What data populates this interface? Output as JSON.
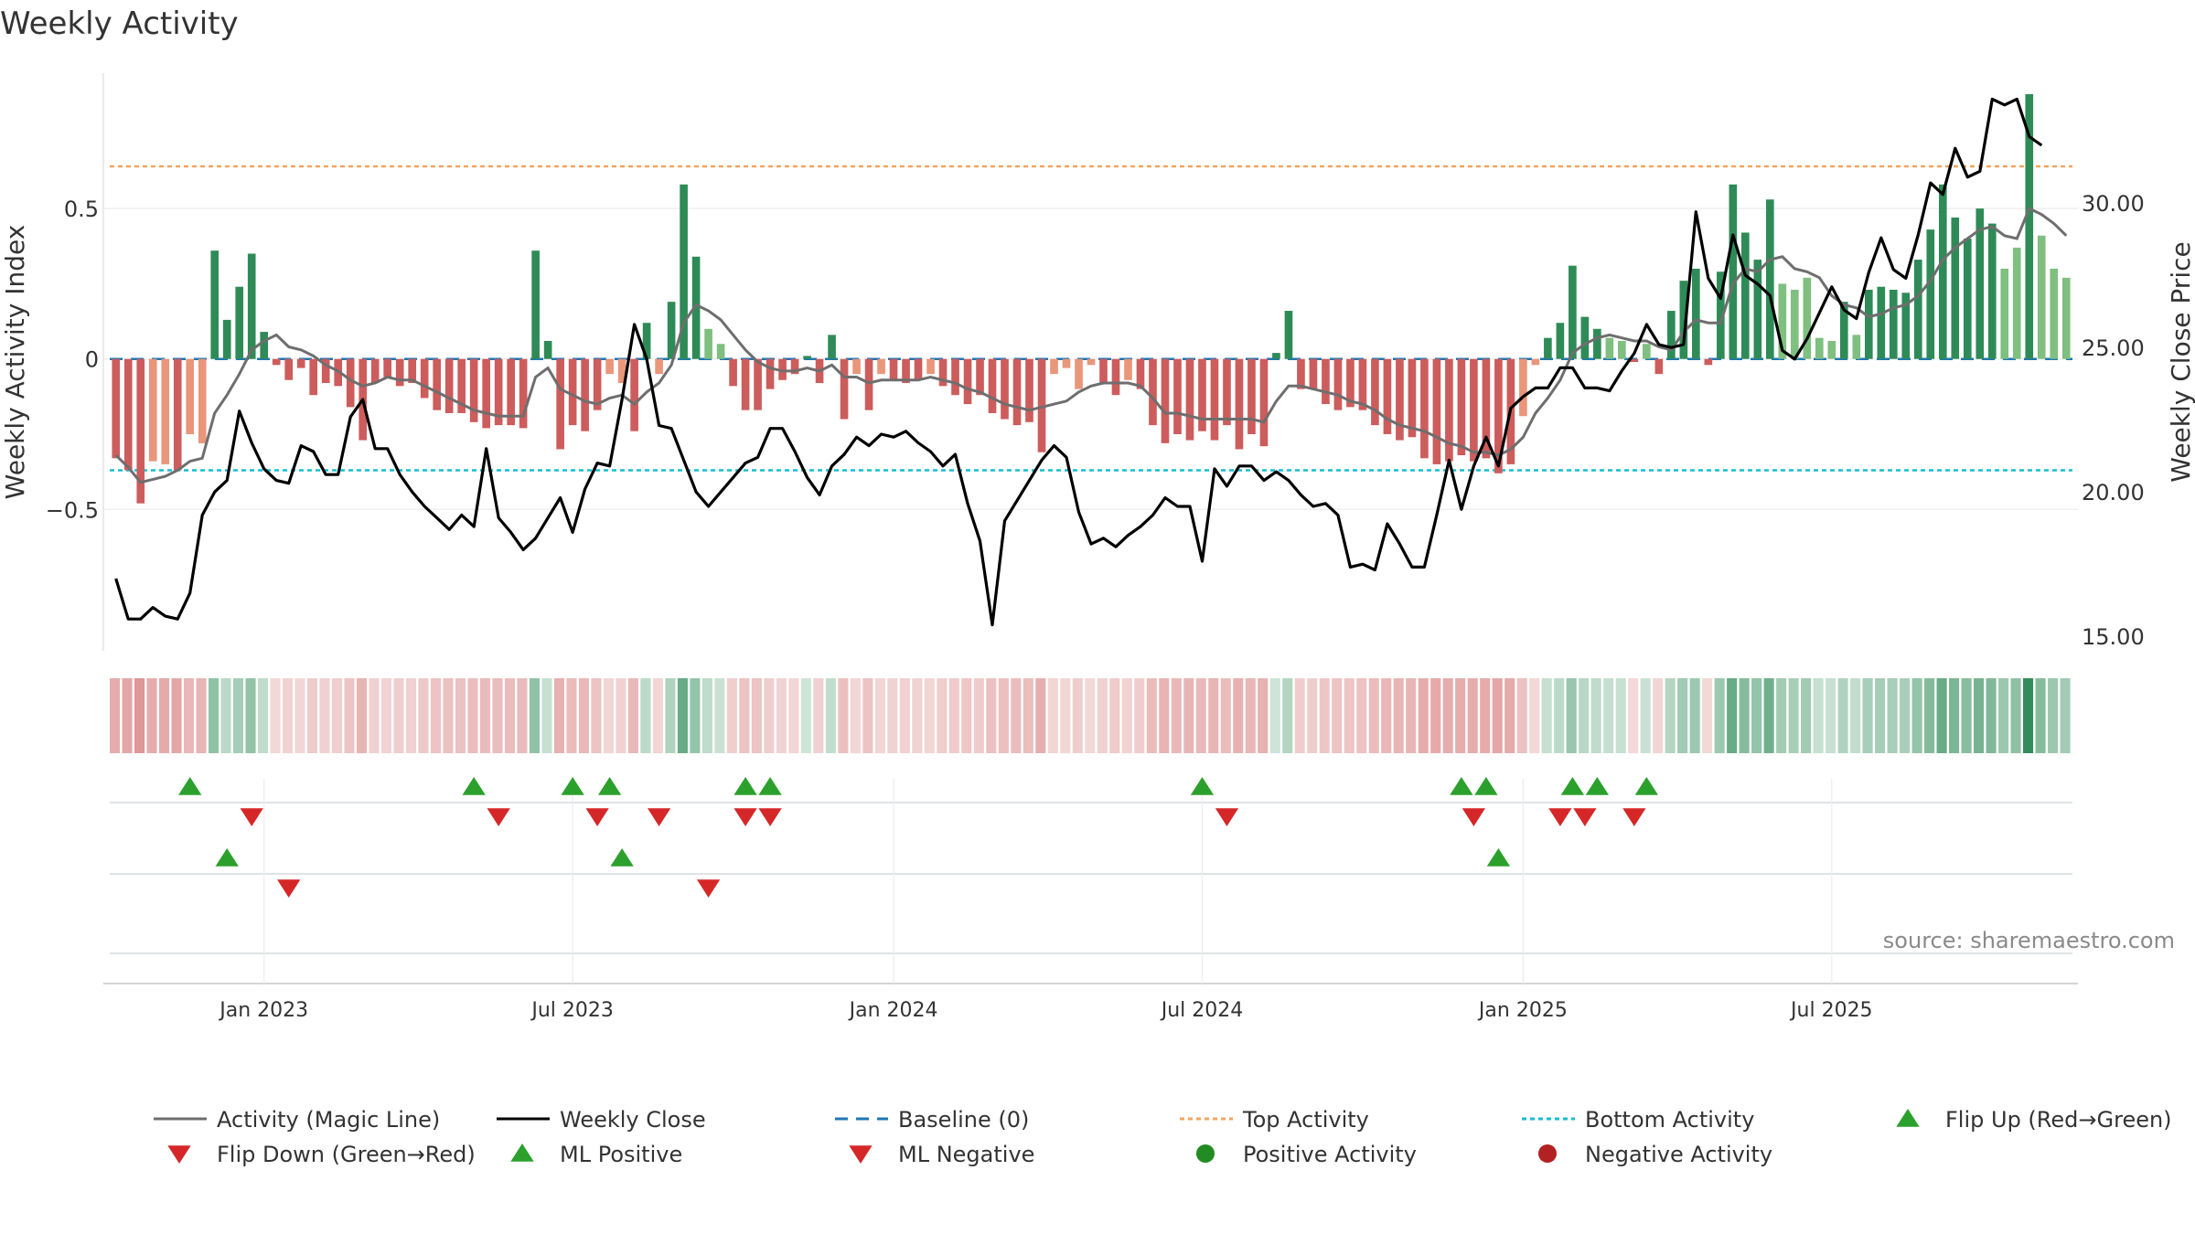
{
  "title": "Weekly Activity",
  "source": "source: sharemaestro.com",
  "colors": {
    "up_dark": "#2e8b57",
    "up_light": "#7fbf7f",
    "down_dark": "#cd5c5c",
    "down_light": "#e9967a",
    "magic_line": "#6e6e6e",
    "close_line": "#000000",
    "baseline": "#1f77b4",
    "top": "#f4a460",
    "bottom": "#17becf",
    "flip_up": "#2ca02c",
    "flip_down": "#d62728",
    "pos_activity": "#228b22",
    "neg_activity": "#b22222"
  },
  "chart_data": {
    "type": "bar",
    "title": "Weekly Activity",
    "ylabel": "Weekly Activity Index",
    "y2label": "Weekly Close Price",
    "ylim": [
      -0.97,
      0.95
    ],
    "y2lim": [
      14.5,
      34.5
    ],
    "yticks": [
      -0.5,
      0,
      0.5
    ],
    "ytick_labels": [
      "−0.5",
      "0",
      "0.5"
    ],
    "y2ticks": [
      15,
      20,
      25,
      30
    ],
    "y2tick_labels": [
      "15.00",
      "20.00",
      "25.00",
      "30.00"
    ],
    "top_activity": 0.64,
    "bottom_activity": -0.37,
    "x_start": "2022-10-10",
    "x_end": "2025-10-06",
    "xtick_labels": [
      "Jan 2023",
      "Jul 2023",
      "Jan 2024",
      "Jul 2024",
      "Jan 2025",
      "Jul 2025"
    ],
    "xtick_weeks": [
      12,
      37,
      63,
      88,
      114,
      139
    ],
    "activity": [
      -0.33,
      -0.37,
      -0.48,
      -0.34,
      -0.35,
      -0.37,
      -0.25,
      -0.28,
      0.36,
      0.13,
      0.24,
      0.35,
      0.09,
      -0.02,
      -0.07,
      -0.03,
      -0.12,
      -0.08,
      -0.09,
      -0.16,
      -0.27,
      -0.08,
      -0.06,
      -0.09,
      -0.08,
      -0.13,
      -0.17,
      -0.18,
      -0.18,
      -0.21,
      -0.23,
      -0.22,
      -0.22,
      -0.23,
      0.36,
      0.06,
      -0.3,
      -0.22,
      -0.24,
      -0.17,
      -0.05,
      -0.08,
      -0.24,
      0.12,
      -0.05,
      0.19,
      0.58,
      0.34,
      0.1,
      0.05,
      -0.09,
      -0.17,
      -0.17,
      -0.1,
      -0.07,
      -0.05,
      0.01,
      -0.08,
      0.08,
      -0.2,
      -0.05,
      -0.17,
      -0.05,
      -0.07,
      -0.08,
      -0.07,
      -0.05,
      -0.09,
      -0.12,
      -0.15,
      -0.12,
      -0.18,
      -0.2,
      -0.22,
      -0.21,
      -0.31,
      -0.05,
      -0.03,
      -0.1,
      -0.02,
      -0.08,
      -0.12,
      -0.07,
      -0.1,
      -0.22,
      -0.28,
      -0.25,
      -0.27,
      -0.24,
      -0.27,
      -0.22,
      -0.3,
      -0.25,
      -0.29,
      0.02,
      0.16,
      -0.1,
      -0.1,
      -0.15,
      -0.17,
      -0.16,
      -0.17,
      -0.22,
      -0.25,
      -0.27,
      -0.26,
      -0.33,
      -0.35,
      -0.34,
      -0.32,
      -0.34,
      -0.33,
      -0.38,
      -0.35,
      -0.19,
      -0.02,
      0.07,
      0.12,
      0.31,
      0.14,
      0.1,
      0.07,
      0.06,
      -0.01,
      0.05,
      -0.05,
      0.16,
      0.26,
      0.3,
      -0.02,
      0.29,
      0.58,
      0.42,
      0.33,
      0.53,
      0.25,
      0.23,
      0.27,
      0.07,
      0.06,
      0.19,
      0.08,
      0.23,
      0.24,
      0.23,
      0.22,
      0.33,
      0.43,
      0.58,
      0.47,
      0.4,
      0.5,
      0.45,
      0.3,
      0.37,
      0.88,
      0.41,
      0.3,
      0.27
    ],
    "magic_line": [
      -0.32,
      -0.36,
      -0.41,
      -0.4,
      -0.39,
      -0.37,
      -0.34,
      -0.33,
      -0.18,
      -0.12,
      -0.05,
      0.03,
      0.06,
      0.08,
      0.04,
      0.03,
      0.01,
      -0.02,
      -0.04,
      -0.07,
      -0.09,
      -0.08,
      -0.06,
      -0.07,
      -0.07,
      -0.09,
      -0.11,
      -0.13,
      -0.15,
      -0.17,
      -0.18,
      -0.19,
      -0.19,
      -0.19,
      -0.06,
      -0.03,
      -0.1,
      -0.12,
      -0.14,
      -0.15,
      -0.13,
      -0.12,
      -0.15,
      -0.11,
      -0.08,
      -0.02,
      0.12,
      0.18,
      0.16,
      0.13,
      0.08,
      0.03,
      -0.01,
      -0.03,
      -0.04,
      -0.04,
      -0.03,
      -0.04,
      -0.02,
      -0.06,
      -0.06,
      -0.08,
      -0.07,
      -0.07,
      -0.07,
      -0.07,
      -0.06,
      -0.07,
      -0.08,
      -0.1,
      -0.11,
      -0.13,
      -0.15,
      -0.16,
      -0.17,
      -0.16,
      -0.15,
      -0.14,
      -0.11,
      -0.09,
      -0.08,
      -0.08,
      -0.08,
      -0.09,
      -0.13,
      -0.18,
      -0.18,
      -0.19,
      -0.2,
      -0.2,
      -0.2,
      -0.2,
      -0.2,
      -0.21,
      -0.14,
      -0.09,
      -0.09,
      -0.1,
      -0.11,
      -0.12,
      -0.14,
      -0.15,
      -0.17,
      -0.2,
      -0.22,
      -0.23,
      -0.24,
      -0.26,
      -0.28,
      -0.29,
      -0.31,
      -0.31,
      -0.32,
      -0.3,
      -0.26,
      -0.18,
      -0.13,
      -0.07,
      0.02,
      0.05,
      0.07,
      0.08,
      0.07,
      0.06,
      0.06,
      0.04,
      0.03,
      0.09,
      0.13,
      0.12,
      0.12,
      0.25,
      0.3,
      0.29,
      0.33,
      0.34,
      0.3,
      0.29,
      0.27,
      0.21,
      0.18,
      0.17,
      0.14,
      0.15,
      0.17,
      0.18,
      0.21,
      0.26,
      0.33,
      0.37,
      0.4,
      0.43,
      0.44,
      0.41,
      0.4,
      0.5,
      0.48,
      0.45,
      0.41
    ],
    "weekly_close": [
      17.0,
      15.6,
      15.6,
      16.0,
      15.7,
      15.6,
      16.5,
      19.2,
      20.0,
      20.4,
      22.8,
      21.7,
      20.8,
      20.4,
      20.3,
      21.6,
      21.4,
      20.6,
      20.6,
      22.6,
      23.2,
      21.5,
      21.5,
      20.6,
      20.0,
      19.5,
      19.1,
      18.7,
      19.2,
      18.8,
      21.5,
      19.1,
      18.6,
      18.0,
      18.4,
      19.1,
      19.8,
      18.6,
      20.1,
      21.0,
      20.9,
      23.2,
      25.8,
      24.6,
      22.3,
      22.2,
      21.1,
      20.0,
      19.5,
      20.0,
      20.5,
      21.0,
      21.2,
      22.2,
      22.2,
      21.4,
      20.5,
      19.9,
      20.9,
      21.3,
      21.9,
      21.6,
      22.0,
      21.9,
      22.1,
      21.7,
      21.4,
      20.9,
      21.3,
      19.6,
      18.3,
      15.4,
      19.0,
      19.7,
      20.4,
      21.1,
      21.6,
      21.2,
      19.3,
      18.2,
      18.4,
      18.1,
      18.5,
      18.8,
      19.2,
      19.8,
      19.5,
      19.5,
      17.6,
      20.8,
      20.2,
      20.9,
      20.9,
      20.4,
      20.7,
      20.4,
      19.9,
      19.5,
      19.6,
      19.2,
      17.4,
      17.5,
      17.3,
      18.9,
      18.2,
      17.4,
      17.4,
      19.2,
      21.1,
      19.4,
      20.9,
      21.9,
      20.9,
      22.9,
      23.3,
      23.6,
      23.6,
      24.3,
      24.3,
      23.6,
      23.6,
      23.5,
      24.2,
      24.8,
      25.8,
      25.1,
      25.0,
      25.1,
      29.7,
      27.4,
      26.7,
      28.9,
      27.5,
      27.2,
      26.8,
      24.9,
      24.6,
      25.3,
      26.2,
      27.1,
      26.3,
      26.0,
      27.6,
      28.8,
      27.7,
      27.4,
      28.9,
      30.7,
      30.3,
      31.9,
      30.9,
      31.1,
      33.6,
      33.4,
      33.6,
      32.3,
      32.0
    ],
    "flip_up_row1": [
      6,
      29,
      37,
      40,
      51,
      53,
      88,
      109,
      111,
      118,
      120,
      124
    ],
    "flip_down_row1": [
      11,
      31,
      39,
      44,
      51,
      53,
      90,
      110,
      117,
      119,
      123
    ],
    "ml_positive_row2": [
      9,
      41,
      112
    ],
    "ml_negative_row2": [
      14,
      48
    ]
  },
  "legend": [
    {
      "label": "Activity (Magic Line)",
      "icon": "line"
    },
    {
      "label": "Weekly Close",
      "icon": "line"
    },
    {
      "label": "Baseline (0)",
      "icon": "dashed-line"
    },
    {
      "label": "Top Activity",
      "icon": "dotted-line"
    },
    {
      "label": "Bottom Activity",
      "icon": "dotted-line"
    },
    {
      "label": "Flip Up (Red→Green)",
      "icon": "triangle-up-icon"
    },
    {
      "label": "Flip Down (Green→Red)",
      "icon": "triangle-down-icon"
    },
    {
      "label": "ML Positive",
      "icon": "triangle-up-icon"
    },
    {
      "label": "ML Negative",
      "icon": "triangle-down-icon"
    },
    {
      "label": "Positive Activity",
      "icon": "dot-icon"
    },
    {
      "label": "Negative Activity",
      "icon": "dot-icon"
    }
  ]
}
